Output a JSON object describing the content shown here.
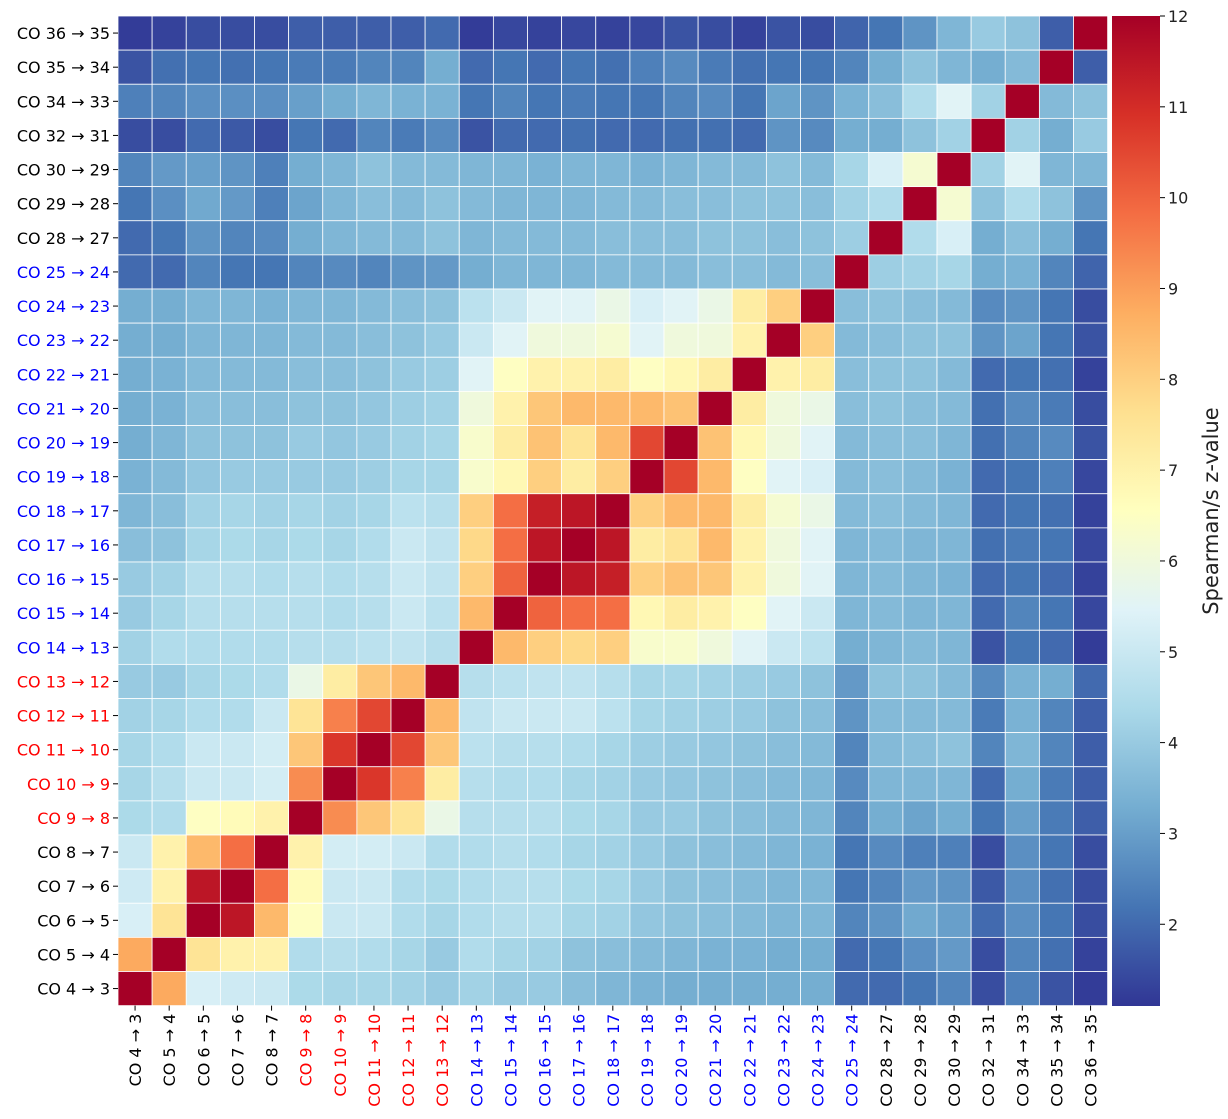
{
  "chart_data": {
    "type": "heatmap",
    "title": "",
    "colorbar_label": "Spearman/s z-value",
    "colorbar_ticks": [
      2,
      3,
      4,
      5,
      6,
      7,
      8,
      9,
      10,
      11,
      12
    ],
    "value_range": [
      1.1,
      12.0
    ],
    "colormap": "RdYlBu_r",
    "colormap_stops": [
      "#313695",
      "#4575b4",
      "#74add1",
      "#abd9e9",
      "#e0f3f8",
      "#ffffbf",
      "#fee090",
      "#fdae61",
      "#f46d43",
      "#d73027",
      "#a50026"
    ],
    "label_colors": {
      "black": "#000000",
      "red": "#ff0000",
      "blue": "#0000ff"
    },
    "columns": [
      {
        "label": "CO 4 → 3",
        "color": "black"
      },
      {
        "label": "CO 5 → 4",
        "color": "black"
      },
      {
        "label": "CO 6 → 5",
        "color": "black"
      },
      {
        "label": "CO 7 → 6",
        "color": "black"
      },
      {
        "label": "CO 8 → 7",
        "color": "black"
      },
      {
        "label": "CO 9 → 8",
        "color": "red"
      },
      {
        "label": "CO 10 → 9",
        "color": "red"
      },
      {
        "label": "CO 11 → 10",
        "color": "red"
      },
      {
        "label": "CO 12 → 11",
        "color": "red"
      },
      {
        "label": "CO 13 → 12",
        "color": "red"
      },
      {
        "label": "CO 14 → 13",
        "color": "blue"
      },
      {
        "label": "CO 15 → 14",
        "color": "blue"
      },
      {
        "label": "CO 16 → 15",
        "color": "blue"
      },
      {
        "label": "CO 17 → 16",
        "color": "blue"
      },
      {
        "label": "CO 18 → 17",
        "color": "blue"
      },
      {
        "label": "CO 19 → 18",
        "color": "blue"
      },
      {
        "label": "CO 20 → 19",
        "color": "blue"
      },
      {
        "label": "CO 21 → 20",
        "color": "blue"
      },
      {
        "label": "CO 22 → 21",
        "color": "blue"
      },
      {
        "label": "CO 23 → 22",
        "color": "blue"
      },
      {
        "label": "CO 24 → 23",
        "color": "blue"
      },
      {
        "label": "CO 25 → 24",
        "color": "blue"
      },
      {
        "label": "CO 28 → 27",
        "color": "black"
      },
      {
        "label": "CO 29 → 28",
        "color": "black"
      },
      {
        "label": "CO 30 → 29",
        "color": "black"
      },
      {
        "label": "CO 32 → 31",
        "color": "black"
      },
      {
        "label": "CO 34 → 33",
        "color": "black"
      },
      {
        "label": "CO 35 → 34",
        "color": "black"
      },
      {
        "label": "CO 36 → 35",
        "color": "black"
      }
    ],
    "row_order_top_to_bottom": [
      28,
      27,
      26,
      25,
      24,
      23,
      22,
      21,
      20,
      19,
      18,
      17,
      16,
      15,
      14,
      13,
      12,
      11,
      10,
      9,
      8,
      7,
      6,
      5,
      4,
      3,
      2,
      1,
      0
    ],
    "matrix": [
      [
        12.0,
        8.8,
        5.3,
        5.1,
        5.0,
        4.4,
        4.3,
        4.3,
        4.2,
        4.0,
        4.2,
        4.0,
        4.0,
        3.7,
        3.5,
        3.4,
        3.3,
        3.3,
        3.3,
        3.3,
        3.3,
        2.0,
        2.0,
        2.2,
        2.5,
        1.5,
        2.4,
        1.6,
        1.2
      ],
      [
        8.8,
        12.0,
        7.5,
        7.0,
        7.0,
        4.5,
        4.6,
        4.5,
        4.3,
        4.0,
        4.5,
        4.3,
        4.2,
        3.8,
        3.7,
        3.6,
        3.5,
        3.4,
        3.4,
        3.3,
        3.3,
        2.0,
        2.2,
        2.7,
        2.9,
        1.5,
        2.5,
        2.1,
        1.3
      ],
      [
        5.3,
        7.5,
        12.0,
        11.5,
        8.5,
        6.5,
        5.0,
        5.0,
        4.5,
        4.3,
        4.5,
        4.6,
        4.6,
        4.3,
        4.2,
        3.9,
        3.8,
        3.7,
        3.6,
        3.5,
        3.5,
        2.5,
        2.8,
        3.2,
        3.0,
        2.0,
        2.7,
        2.2,
        1.5
      ],
      [
        5.1,
        7.0,
        11.5,
        12.0,
        9.8,
        6.7,
        5.0,
        5.0,
        4.5,
        4.4,
        4.5,
        4.6,
        4.6,
        4.4,
        4.3,
        4.0,
        3.8,
        3.7,
        3.6,
        3.5,
        3.5,
        2.2,
        2.5,
        2.9,
        2.8,
        1.7,
        2.7,
        2.1,
        1.5
      ],
      [
        5.0,
        7.0,
        8.5,
        9.8,
        12.0,
        7.0,
        5.2,
        5.2,
        5.0,
        4.5,
        4.5,
        4.6,
        4.5,
        4.3,
        4.2,
        4.0,
        3.8,
        3.7,
        3.6,
        3.5,
        3.4,
        2.2,
        2.6,
        2.4,
        2.4,
        1.5,
        2.7,
        2.2,
        1.5
      ],
      [
        4.4,
        4.5,
        6.5,
        6.7,
        7.0,
        12.0,
        9.3,
        8.2,
        7.5,
        5.8,
        4.6,
        4.6,
        4.6,
        4.4,
        4.3,
        4.0,
        4.0,
        3.8,
        3.7,
        3.6,
        3.5,
        2.5,
        3.3,
        3.1,
        3.3,
        2.2,
        3.0,
        2.3,
        1.8
      ],
      [
        4.3,
        4.6,
        5.0,
        5.0,
        5.2,
        9.3,
        12.0,
        10.8,
        9.5,
        7.2,
        4.6,
        4.5,
        4.5,
        4.3,
        4.2,
        4.0,
        3.9,
        3.8,
        3.7,
        3.6,
        3.5,
        2.6,
        3.5,
        3.5,
        3.5,
        2.0,
        3.3,
        2.3,
        1.8
      ],
      [
        4.3,
        4.5,
        5.0,
        5.0,
        5.2,
        8.2,
        10.8,
        12.0,
        10.5,
        8.2,
        4.7,
        4.6,
        4.6,
        4.5,
        4.3,
        4.1,
        4.0,
        3.9,
        3.8,
        3.7,
        3.6,
        2.5,
        3.6,
        3.7,
        3.8,
        2.5,
        3.5,
        2.5,
        1.8
      ],
      [
        4.2,
        4.3,
        4.5,
        4.5,
        5.0,
        7.5,
        9.5,
        10.5,
        12.0,
        8.5,
        4.8,
        5.0,
        5.0,
        5.0,
        4.7,
        4.3,
        4.2,
        4.1,
        4.0,
        3.8,
        3.7,
        2.8,
        3.6,
        3.6,
        3.6,
        2.3,
        3.4,
        2.5,
        1.8
      ],
      [
        4.0,
        4.0,
        4.3,
        4.4,
        4.5,
        5.8,
        7.2,
        8.2,
        8.5,
        12.0,
        4.6,
        4.7,
        4.8,
        4.8,
        4.6,
        4.3,
        4.3,
        4.2,
        4.1,
        4.0,
        3.8,
        2.9,
        3.8,
        3.8,
        3.6,
        2.6,
        3.4,
        3.3,
        2.0
      ],
      [
        4.2,
        4.5,
        4.5,
        4.5,
        4.5,
        4.6,
        4.6,
        4.7,
        4.8,
        4.6,
        12.0,
        8.5,
        8.0,
        7.8,
        8.0,
        6.3,
        6.3,
        6.0,
        5.5,
        5.0,
        4.7,
        3.3,
        3.5,
        3.6,
        3.5,
        1.6,
        2.2,
        2.0,
        1.2
      ],
      [
        4.0,
        4.3,
        4.6,
        4.6,
        4.6,
        4.6,
        4.5,
        4.6,
        5.0,
        4.7,
        8.5,
        12.0,
        10.0,
        9.8,
        9.8,
        6.8,
        7.2,
        7.0,
        6.5,
        5.5,
        5.0,
        3.5,
        3.6,
        3.5,
        3.5,
        2.0,
        2.5,
        2.2,
        1.4
      ],
      [
        4.0,
        4.2,
        4.6,
        4.6,
        4.5,
        4.6,
        4.5,
        4.6,
        5.0,
        4.8,
        8.0,
        10.0,
        12.0,
        11.5,
        11.3,
        8.0,
        8.3,
        8.2,
        7.0,
        6.0,
        5.5,
        3.5,
        3.6,
        3.5,
        3.4,
        2.0,
        2.2,
        2.0,
        1.3
      ],
      [
        3.7,
        3.8,
        4.3,
        4.4,
        4.3,
        4.4,
        4.3,
        4.5,
        5.0,
        4.8,
        7.8,
        9.8,
        11.5,
        12.0,
        11.5,
        7.2,
        7.5,
        8.5,
        7.0,
        6.0,
        5.5,
        3.5,
        3.6,
        3.5,
        3.5,
        2.1,
        2.3,
        2.2,
        1.4
      ],
      [
        3.5,
        3.7,
        4.2,
        4.3,
        4.2,
        4.3,
        4.2,
        4.3,
        4.7,
        4.6,
        8.0,
        9.8,
        11.3,
        11.5,
        12.0,
        8.0,
        8.5,
        8.5,
        7.2,
        6.2,
        5.8,
        3.6,
        3.7,
        3.6,
        3.5,
        2.0,
        2.2,
        2.1,
        1.3
      ],
      [
        3.4,
        3.6,
        3.9,
        4.0,
        4.0,
        4.0,
        4.0,
        4.1,
        4.3,
        4.3,
        6.3,
        6.8,
        8.0,
        7.2,
        8.0,
        12.0,
        10.5,
        8.5,
        6.5,
        5.5,
        5.3,
        3.6,
        3.7,
        3.6,
        3.4,
        2.0,
        2.2,
        2.4,
        1.4
      ],
      [
        3.3,
        3.5,
        3.8,
        3.8,
        3.8,
        4.0,
        3.9,
        4.0,
        4.2,
        4.3,
        6.3,
        7.2,
        8.3,
        7.5,
        8.5,
        10.5,
        12.0,
        8.3,
        6.8,
        6.0,
        5.5,
        3.6,
        3.7,
        3.7,
        3.5,
        2.1,
        2.5,
        2.6,
        1.6
      ],
      [
        3.3,
        3.4,
        3.7,
        3.7,
        3.7,
        3.8,
        3.8,
        3.9,
        4.1,
        4.2,
        6.0,
        7.0,
        8.2,
        8.5,
        8.5,
        8.5,
        8.3,
        12.0,
        7.2,
        6.0,
        5.8,
        3.7,
        3.8,
        3.7,
        3.6,
        2.1,
        2.6,
        2.3,
        1.5
      ],
      [
        3.3,
        3.4,
        3.6,
        3.6,
        3.6,
        3.7,
        3.7,
        3.8,
        4.0,
        4.1,
        5.5,
        6.5,
        7.0,
        7.0,
        7.2,
        6.5,
        6.8,
        7.2,
        12.0,
        7.0,
        7.2,
        3.7,
        3.8,
        3.8,
        3.6,
        2.0,
        2.2,
        2.1,
        1.3
      ],
      [
        3.3,
        3.3,
        3.5,
        3.5,
        3.5,
        3.6,
        3.6,
        3.7,
        3.8,
        4.0,
        5.0,
        5.5,
        6.0,
        6.0,
        6.2,
        5.5,
        6.0,
        6.0,
        7.0,
        12.0,
        8.0,
        3.6,
        3.7,
        3.8,
        3.8,
        2.8,
        3.1,
        2.2,
        1.6
      ],
      [
        3.3,
        3.3,
        3.5,
        3.5,
        3.4,
        3.5,
        3.5,
        3.6,
        3.7,
        3.8,
        4.7,
        5.0,
        5.5,
        5.5,
        5.8,
        5.3,
        5.5,
        5.8,
        7.2,
        8.0,
        12.0,
        3.7,
        3.8,
        3.7,
        3.6,
        2.6,
        2.8,
        2.2,
        1.5
      ],
      [
        2.0,
        2.0,
        2.5,
        2.2,
        2.2,
        2.5,
        2.6,
        2.5,
        2.8,
        2.9,
        3.3,
        3.5,
        3.5,
        3.5,
        3.6,
        3.6,
        3.6,
        3.7,
        3.7,
        3.6,
        3.7,
        12.0,
        4.1,
        4.2,
        4.3,
        3.3,
        3.4,
        2.5,
        1.9
      ],
      [
        2.0,
        2.2,
        2.8,
        2.5,
        2.6,
        3.3,
        3.5,
        3.6,
        3.6,
        3.8,
        3.5,
        3.6,
        3.6,
        3.6,
        3.7,
        3.7,
        3.7,
        3.8,
        3.8,
        3.7,
        3.8,
        4.1,
        12.0,
        4.5,
        5.3,
        3.3,
        3.7,
        3.3,
        2.2
      ],
      [
        2.2,
        2.7,
        3.2,
        2.9,
        2.4,
        3.1,
        3.5,
        3.7,
        3.6,
        3.8,
        3.6,
        3.5,
        3.5,
        3.5,
        3.6,
        3.6,
        3.7,
        3.7,
        3.8,
        3.8,
        3.7,
        4.2,
        4.5,
        12.0,
        6.2,
        3.8,
        4.5,
        3.8,
        2.8
      ],
      [
        2.5,
        2.9,
        3.0,
        2.8,
        2.4,
        3.3,
        3.5,
        3.8,
        3.6,
        3.6,
        3.5,
        3.5,
        3.4,
        3.5,
        3.5,
        3.4,
        3.5,
        3.6,
        3.6,
        3.8,
        3.6,
        4.3,
        5.3,
        6.2,
        12.0,
        4.2,
        5.5,
        3.5,
        3.5
      ],
      [
        1.5,
        1.5,
        2.0,
        1.7,
        1.5,
        2.2,
        2.0,
        2.5,
        2.3,
        2.6,
        1.6,
        2.0,
        2.0,
        2.1,
        2.0,
        2.0,
        2.1,
        2.1,
        2.0,
        2.8,
        2.6,
        3.3,
        3.3,
        3.8,
        4.2,
        12.0,
        4.2,
        3.3,
        4.0
      ],
      [
        2.4,
        2.5,
        2.7,
        2.7,
        2.7,
        3.0,
        3.3,
        3.5,
        3.4,
        3.4,
        2.2,
        2.5,
        2.2,
        2.3,
        2.2,
        2.2,
        2.5,
        2.6,
        2.2,
        3.1,
        2.8,
        3.4,
        3.7,
        4.5,
        5.5,
        4.2,
        12.0,
        3.6,
        3.8
      ],
      [
        1.6,
        2.1,
        2.2,
        2.1,
        2.2,
        2.3,
        2.3,
        2.5,
        2.5,
        3.3,
        2.0,
        2.2,
        2.0,
        2.2,
        2.1,
        2.4,
        2.6,
        2.3,
        2.1,
        2.2,
        2.2,
        2.5,
        3.3,
        3.8,
        3.5,
        3.3,
        3.6,
        12.0,
        1.8
      ],
      [
        1.2,
        1.3,
        1.5,
        1.5,
        1.5,
        1.8,
        1.8,
        1.8,
        1.8,
        2.0,
        1.2,
        1.4,
        1.3,
        1.4,
        1.3,
        1.4,
        1.6,
        1.5,
        1.3,
        1.6,
        1.5,
        1.9,
        2.2,
        2.8,
        3.5,
        4.0,
        3.8,
        1.8,
        12.0
      ]
    ]
  }
}
